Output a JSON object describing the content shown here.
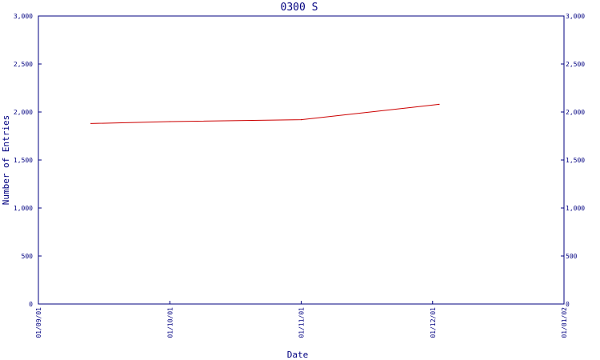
{
  "chart_data": {
    "type": "line",
    "title": "0300 S",
    "xlabel": "Date",
    "ylabel": "Number of Entries",
    "x_ticks": [
      "01/09/01",
      "01/10/01",
      "01/11/01",
      "01/12/01",
      "01/01/02"
    ],
    "y_ticks": [
      "0",
      "500",
      "1,000",
      "1,500",
      "2,000",
      "2,500",
      "3,000"
    ],
    "ylim": [
      0,
      3000
    ],
    "right_axis_ticks": true,
    "grid": false,
    "series": [
      {
        "color": "#cc0000",
        "points": [
          {
            "x": "01/09/01 + 0.4 month",
            "x_month": 0.4,
            "y": 1880
          },
          {
            "x": "01/10/01",
            "x_month": 1.0,
            "y": 1900
          },
          {
            "x": "01/11/01",
            "x_month": 2.0,
            "y": 1920
          },
          {
            "x": "01/12/01",
            "x_month": 3.05,
            "y": 2080
          }
        ]
      }
    ],
    "colors": {
      "axis": "#000080",
      "text": "#000080",
      "line": "#cc0000",
      "background": "#ffffff"
    }
  }
}
